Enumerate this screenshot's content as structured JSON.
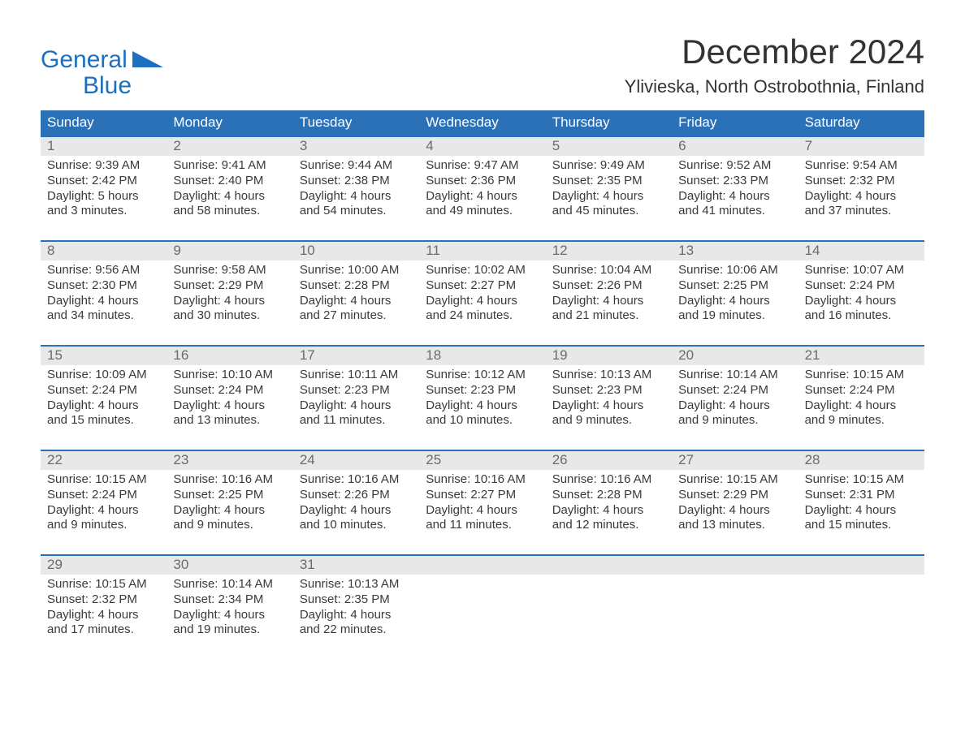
{
  "colors": {
    "brand_blue": "#2a71b8",
    "logo_blue": "#1d6fbf",
    "header_bg": "#2a71b8",
    "header_text": "#ffffff",
    "date_row_bg": "#e8e8e8",
    "date_text": "#6b6b6b",
    "body_text": "#3a3a3a",
    "title_text": "#333333",
    "page_bg": "#ffffff",
    "week_border": "#2a71b8"
  },
  "typography": {
    "family": "Arial",
    "month_title_fontsize": 42,
    "location_fontsize": 22,
    "logo_fontsize": 30,
    "day_header_fontsize": 17,
    "date_fontsize": 17,
    "cell_fontsize": 15
  },
  "logo": {
    "top": "General",
    "bottom": "Blue"
  },
  "month_title": "December 2024",
  "location": "Ylivieska, North Ostrobothnia, Finland",
  "day_headers": [
    "Sunday",
    "Monday",
    "Tuesday",
    "Wednesday",
    "Thursday",
    "Friday",
    "Saturday"
  ],
  "weeks": [
    {
      "dates": [
        "1",
        "2",
        "3",
        "4",
        "5",
        "6",
        "7"
      ],
      "cells": [
        {
          "sunrise": "9:39 AM",
          "sunset": "2:42 PM",
          "daylight1": "5 hours",
          "daylight2": "and 3 minutes."
        },
        {
          "sunrise": "9:41 AM",
          "sunset": "2:40 PM",
          "daylight1": "4 hours",
          "daylight2": "and 58 minutes."
        },
        {
          "sunrise": "9:44 AM",
          "sunset": "2:38 PM",
          "daylight1": "4 hours",
          "daylight2": "and 54 minutes."
        },
        {
          "sunrise": "9:47 AM",
          "sunset": "2:36 PM",
          "daylight1": "4 hours",
          "daylight2": "and 49 minutes."
        },
        {
          "sunrise": "9:49 AM",
          "sunset": "2:35 PM",
          "daylight1": "4 hours",
          "daylight2": "and 45 minutes."
        },
        {
          "sunrise": "9:52 AM",
          "sunset": "2:33 PM",
          "daylight1": "4 hours",
          "daylight2": "and 41 minutes."
        },
        {
          "sunrise": "9:54 AM",
          "sunset": "2:32 PM",
          "daylight1": "4 hours",
          "daylight2": "and 37 minutes."
        }
      ]
    },
    {
      "dates": [
        "8",
        "9",
        "10",
        "11",
        "12",
        "13",
        "14"
      ],
      "cells": [
        {
          "sunrise": "9:56 AM",
          "sunset": "2:30 PM",
          "daylight1": "4 hours",
          "daylight2": "and 34 minutes."
        },
        {
          "sunrise": "9:58 AM",
          "sunset": "2:29 PM",
          "daylight1": "4 hours",
          "daylight2": "and 30 minutes."
        },
        {
          "sunrise": "10:00 AM",
          "sunset": "2:28 PM",
          "daylight1": "4 hours",
          "daylight2": "and 27 minutes."
        },
        {
          "sunrise": "10:02 AM",
          "sunset": "2:27 PM",
          "daylight1": "4 hours",
          "daylight2": "and 24 minutes."
        },
        {
          "sunrise": "10:04 AM",
          "sunset": "2:26 PM",
          "daylight1": "4 hours",
          "daylight2": "and 21 minutes."
        },
        {
          "sunrise": "10:06 AM",
          "sunset": "2:25 PM",
          "daylight1": "4 hours",
          "daylight2": "and 19 minutes."
        },
        {
          "sunrise": "10:07 AM",
          "sunset": "2:24 PM",
          "daylight1": "4 hours",
          "daylight2": "and 16 minutes."
        }
      ]
    },
    {
      "dates": [
        "15",
        "16",
        "17",
        "18",
        "19",
        "20",
        "21"
      ],
      "cells": [
        {
          "sunrise": "10:09 AM",
          "sunset": "2:24 PM",
          "daylight1": "4 hours",
          "daylight2": "and 15 minutes."
        },
        {
          "sunrise": "10:10 AM",
          "sunset": "2:24 PM",
          "daylight1": "4 hours",
          "daylight2": "and 13 minutes."
        },
        {
          "sunrise": "10:11 AM",
          "sunset": "2:23 PM",
          "daylight1": "4 hours",
          "daylight2": "and 11 minutes."
        },
        {
          "sunrise": "10:12 AM",
          "sunset": "2:23 PM",
          "daylight1": "4 hours",
          "daylight2": "and 10 minutes."
        },
        {
          "sunrise": "10:13 AM",
          "sunset": "2:23 PM",
          "daylight1": "4 hours",
          "daylight2": "and 9 minutes."
        },
        {
          "sunrise": "10:14 AM",
          "sunset": "2:24 PM",
          "daylight1": "4 hours",
          "daylight2": "and 9 minutes."
        },
        {
          "sunrise": "10:15 AM",
          "sunset": "2:24 PM",
          "daylight1": "4 hours",
          "daylight2": "and 9 minutes."
        }
      ]
    },
    {
      "dates": [
        "22",
        "23",
        "24",
        "25",
        "26",
        "27",
        "28"
      ],
      "cells": [
        {
          "sunrise": "10:15 AM",
          "sunset": "2:24 PM",
          "daylight1": "4 hours",
          "daylight2": "and 9 minutes."
        },
        {
          "sunrise": "10:16 AM",
          "sunset": "2:25 PM",
          "daylight1": "4 hours",
          "daylight2": "and 9 minutes."
        },
        {
          "sunrise": "10:16 AM",
          "sunset": "2:26 PM",
          "daylight1": "4 hours",
          "daylight2": "and 10 minutes."
        },
        {
          "sunrise": "10:16 AM",
          "sunset": "2:27 PM",
          "daylight1": "4 hours",
          "daylight2": "and 11 minutes."
        },
        {
          "sunrise": "10:16 AM",
          "sunset": "2:28 PM",
          "daylight1": "4 hours",
          "daylight2": "and 12 minutes."
        },
        {
          "sunrise": "10:15 AM",
          "sunset": "2:29 PM",
          "daylight1": "4 hours",
          "daylight2": "and 13 minutes."
        },
        {
          "sunrise": "10:15 AM",
          "sunset": "2:31 PM",
          "daylight1": "4 hours",
          "daylight2": "and 15 minutes."
        }
      ]
    },
    {
      "dates": [
        "29",
        "30",
        "31",
        "",
        "",
        "",
        ""
      ],
      "cells": [
        {
          "sunrise": "10:15 AM",
          "sunset": "2:32 PM",
          "daylight1": "4 hours",
          "daylight2": "and 17 minutes."
        },
        {
          "sunrise": "10:14 AM",
          "sunset": "2:34 PM",
          "daylight1": "4 hours",
          "daylight2": "and 19 minutes."
        },
        {
          "sunrise": "10:13 AM",
          "sunset": "2:35 PM",
          "daylight1": "4 hours",
          "daylight2": "and 22 minutes."
        },
        null,
        null,
        null,
        null
      ]
    }
  ],
  "labels": {
    "sunrise_prefix": "Sunrise: ",
    "sunset_prefix": "Sunset: ",
    "daylight_prefix": "Daylight: "
  }
}
